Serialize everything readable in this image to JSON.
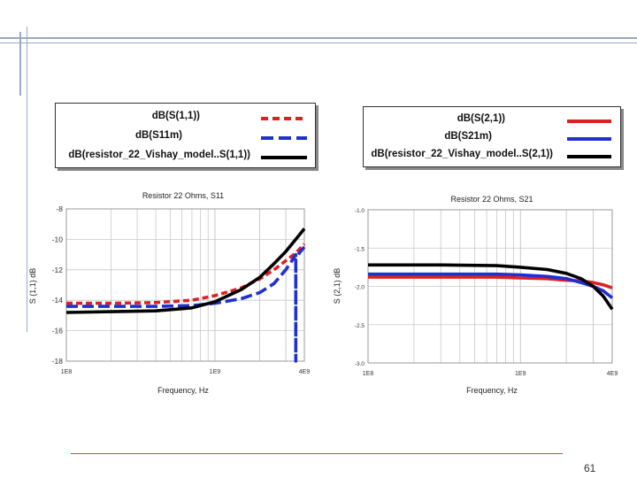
{
  "page": {
    "number": "61"
  },
  "legends": [
    {
      "items": [
        {
          "label": "dB(S(1,1))",
          "color": "#e02020",
          "dash": "dash"
        },
        {
          "label": "dB(S11m)",
          "color": "#2030d0",
          "dash": "longdash"
        },
        {
          "label": "dB(resistor_22_Vishay_model..S(1,1))",
          "color": "#000000",
          "dash": "solid"
        }
      ]
    },
    {
      "items": [
        {
          "label": "dB(S(2,1))",
          "color": "#e02020",
          "dash": "solid"
        },
        {
          "label": "dB(S21m)",
          "color": "#2030d0",
          "dash": "solid"
        },
        {
          "label": "dB(resistor_22_Vishay_model..S(2,1))",
          "color": "#000000",
          "dash": "solid"
        }
      ]
    }
  ],
  "chart_data": [
    {
      "type": "line",
      "title": "Resistor 22 Ohms, S11",
      "xlabel": "Frequency, Hz",
      "ylabel": "S (1,1) dB",
      "xscale": "log",
      "xlim": [
        100000000,
        4000000000
      ],
      "ylim": [
        -18,
        -8
      ],
      "xticks": [
        {
          "value": 100000000,
          "label": "1E8"
        },
        {
          "value": 1000000000,
          "label": "1E9"
        },
        {
          "value": 4000000000,
          "label": "4E9"
        }
      ],
      "yticks": [
        {
          "value": -8,
          "label": "-8"
        },
        {
          "value": -10,
          "label": "-10"
        },
        {
          "value": -12,
          "label": "-12"
        },
        {
          "value": -14,
          "label": "-14"
        },
        {
          "value": -16,
          "label": "-16"
        },
        {
          "value": -18,
          "label": "-18"
        }
      ],
      "grid": true,
      "series": [
        {
          "name": "dB(S(1,1))",
          "color": "#e02020",
          "dash": "dash",
          "x": [
            100000000,
            200000000,
            400000000,
            700000000,
            1000000000,
            1500000000,
            2000000000,
            2500000000,
            3000000000,
            3500000000,
            4000000000
          ],
          "y": [
            -14.2,
            -14.2,
            -14.15,
            -14.0,
            -13.7,
            -13.2,
            -12.6,
            -12.0,
            -11.4,
            -10.9,
            -10.3
          ]
        },
        {
          "name": "dB(S11m)",
          "color": "#2030d0",
          "dash": "longdash",
          "x": [
            100000000,
            200000000,
            400000000,
            700000000,
            1000000000,
            1500000000,
            2000000000,
            2500000000,
            3000000000,
            3300000000,
            3500000000,
            3500000000,
            3500000000,
            3700000000,
            4000000000
          ],
          "y": [
            -14.4,
            -14.4,
            -14.4,
            -14.35,
            -14.2,
            -13.9,
            -13.5,
            -12.9,
            -12.0,
            -11.4,
            -11.0,
            -18.0,
            -11.3,
            -10.9,
            -10.5
          ]
        },
        {
          "name": "dB(resistor_22_Vishay_model..S(1,1))",
          "color": "#000000",
          "dash": "solid",
          "x": [
            100000000,
            200000000,
            400000000,
            700000000,
            1000000000,
            1500000000,
            2000000000,
            2500000000,
            3000000000,
            3500000000,
            4000000000
          ],
          "y": [
            -14.8,
            -14.75,
            -14.7,
            -14.5,
            -14.1,
            -13.3,
            -12.5,
            -11.6,
            -10.8,
            -10.0,
            -9.3
          ]
        }
      ]
    },
    {
      "type": "line",
      "title": "Resistor 22 Ohms, S21",
      "xlabel": "Frequency, Hz",
      "ylabel": "S (2,1) dB",
      "xscale": "log",
      "xlim": [
        100000000,
        4000000000
      ],
      "ylim": [
        -3.0,
        -1.0
      ],
      "xticks": [
        {
          "value": 100000000,
          "label": "1E8"
        },
        {
          "value": 1000000000,
          "label": "1E9"
        },
        {
          "value": 4000000000,
          "label": "4E9"
        }
      ],
      "yticks": [
        {
          "value": -1.0,
          "label": "-1.0"
        },
        {
          "value": -1.5,
          "label": "-1.5"
        },
        {
          "value": -2.0,
          "label": "-2.0"
        },
        {
          "value": -2.5,
          "label": "-2.5"
        },
        {
          "value": -3.0,
          "label": "-3.0"
        }
      ],
      "grid": true,
      "series": [
        {
          "name": "dB(S(2,1))",
          "color": "#e02020",
          "dash": "solid",
          "x": [
            100000000,
            300000000,
            700000000,
            1000000000,
            1500000000,
            2000000000,
            2500000000,
            3000000000,
            3500000000,
            4000000000
          ],
          "y": [
            -1.88,
            -1.88,
            -1.88,
            -1.89,
            -1.9,
            -1.92,
            -1.93,
            -1.95,
            -1.98,
            -2.02
          ]
        },
        {
          "name": "dB(S21m)",
          "color": "#2030d0",
          "dash": "solid",
          "x": [
            100000000,
            300000000,
            700000000,
            1000000000,
            1500000000,
            2000000000,
            2500000000,
            3000000000,
            3500000000,
            4000000000
          ],
          "y": [
            -1.84,
            -1.84,
            -1.84,
            -1.85,
            -1.87,
            -1.9,
            -1.95,
            -2.0,
            -2.06,
            -2.15
          ]
        },
        {
          "name": "dB(resistor_22_Vishay_model..S(2,1))",
          "color": "#000000",
          "dash": "solid",
          "x": [
            100000000,
            300000000,
            700000000,
            1000000000,
            1500000000,
            2000000000,
            2500000000,
            3000000000,
            3500000000,
            4000000000
          ],
          "y": [
            -1.72,
            -1.72,
            -1.73,
            -1.75,
            -1.78,
            -1.83,
            -1.9,
            -2.0,
            -2.13,
            -2.3
          ]
        }
      ]
    }
  ]
}
